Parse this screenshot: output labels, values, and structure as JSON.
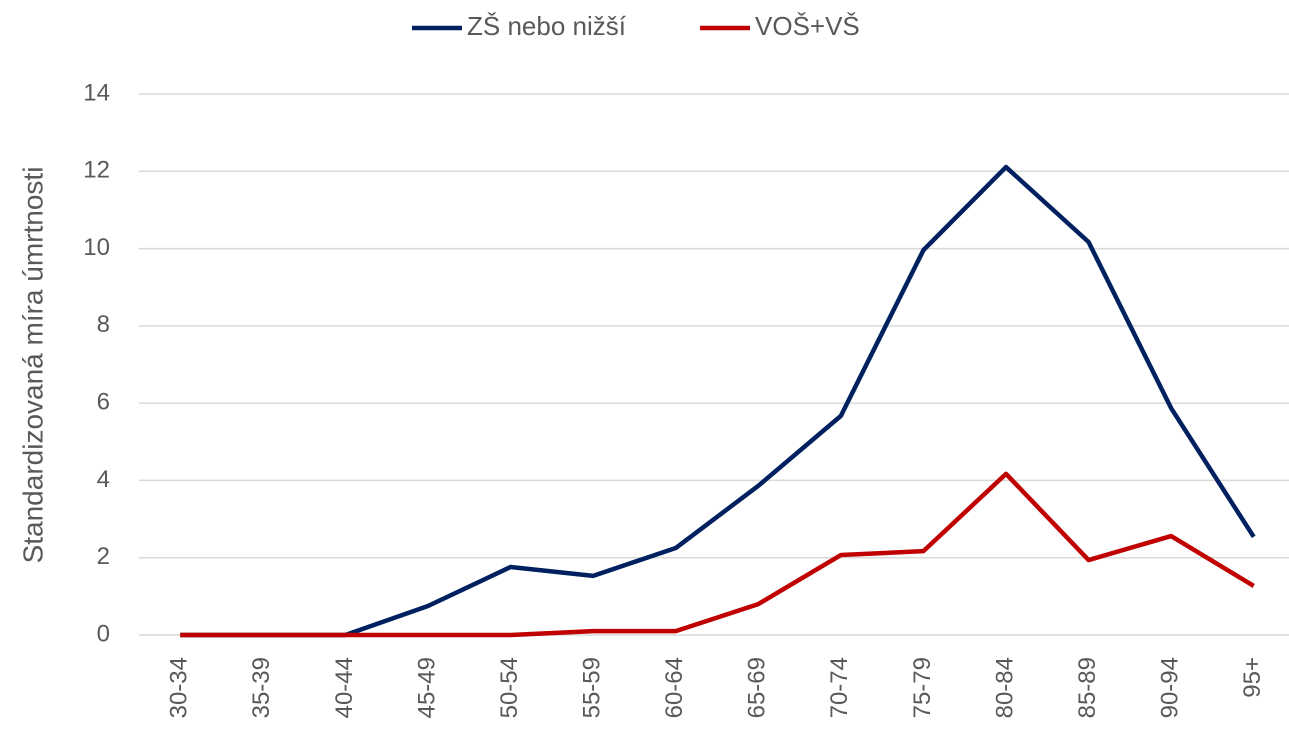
{
  "chart_data": {
    "type": "line",
    "y_label": "Standardizovaná míra úmrtnosti",
    "categories": [
      "30-34",
      "35-39",
      "40-44",
      "45-49",
      "50-54",
      "55-59",
      "60-64",
      "65-69",
      "70-74",
      "75-79",
      "80-84",
      "85-89",
      "90-94",
      "95+"
    ],
    "series": [
      {
        "name": "ZŠ nebo nižší",
        "color": "#002060",
        "values": [
          0,
          0,
          0,
          0.75,
          1.76,
          1.53,
          2.25,
          3.86,
          5.67,
          9.96,
          12.11,
          10.17,
          5.87,
          2.54
        ]
      },
      {
        "name": "VOŠ+VŠ",
        "color": "#c00000",
        "values": [
          0,
          0,
          0,
          0,
          0,
          0.1,
          0.1,
          0.8,
          2.07,
          2.17,
          4.17,
          1.94,
          2.56,
          1.27
        ]
      }
    ],
    "ylim": [
      0,
      14
    ],
    "yticks": [
      0,
      2,
      4,
      6,
      8,
      10,
      12,
      14
    ],
    "grid": true,
    "legend": "top"
  }
}
